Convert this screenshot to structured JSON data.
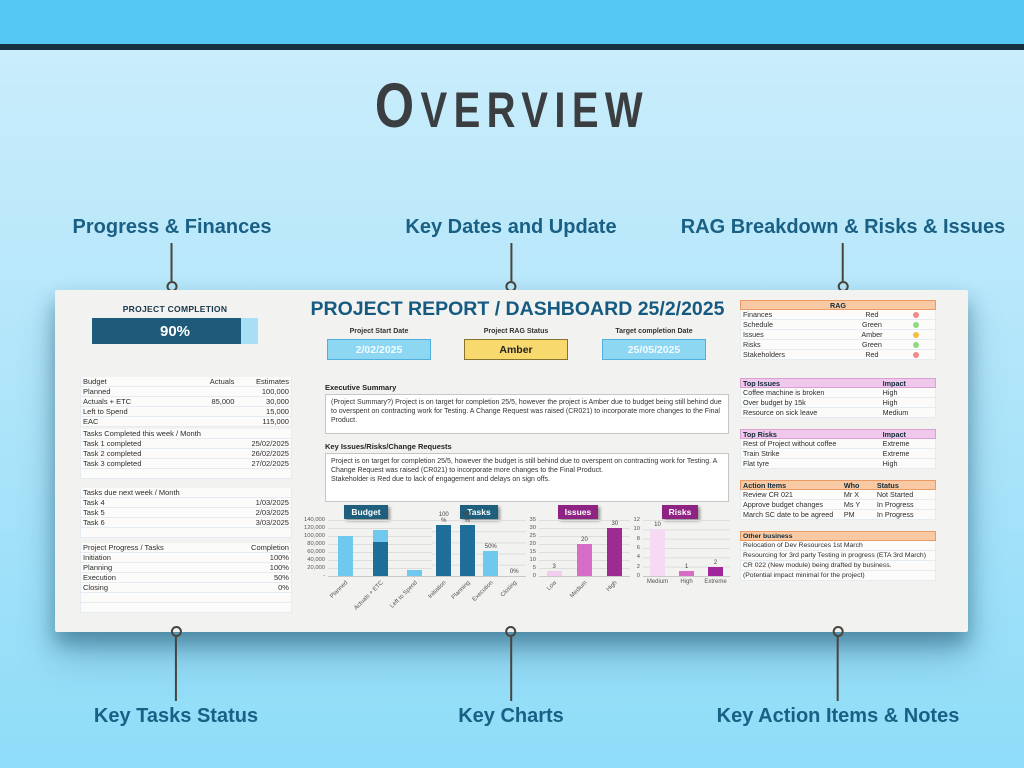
{
  "page": {
    "title": "Overview"
  },
  "callouts": {
    "top": [
      {
        "label": "Progress & Finances"
      },
      {
        "label": "Key Dates and Update"
      },
      {
        "label": "RAG Breakdown & Risks & Issues"
      }
    ],
    "bottom": [
      {
        "label": "Key Tasks Status"
      },
      {
        "label": "Key Charts"
      },
      {
        "label": "Key Action Items & Notes"
      }
    ]
  },
  "dashboard": {
    "title": "PROJECT REPORT / DASHBOARD 25/2/2025",
    "completion": {
      "label": "PROJECT COMPLETION",
      "value": "90%",
      "percent": 90,
      "fill_color": "#1e5b7a",
      "track_color": "#a9dff4"
    },
    "budget_table": {
      "headers": [
        "Budget",
        "Actuals",
        "Estimates"
      ],
      "rows": [
        [
          "Planned",
          "",
          "100,000"
        ],
        [
          "Actuals + ETC",
          "85,000",
          "30,000"
        ],
        [
          "Left to Spend",
          "",
          "15,000"
        ],
        [
          "EAC",
          "",
          "115,000"
        ]
      ]
    },
    "tasks_completed": {
      "header": "Tasks Completed this week / Month",
      "rows": [
        [
          "Task 1 completed",
          "25/02/2025"
        ],
        [
          "Task 2 completed",
          "26/02/2025"
        ],
        [
          "Task 3 completed",
          "27/02/2025"
        ]
      ]
    },
    "tasks_due": {
      "header": "Tasks due next week / Month",
      "rows": [
        [
          "Task 4",
          "1/03/2025"
        ],
        [
          "Task 5",
          "2/03/2025"
        ],
        [
          "Task 6",
          "3/03/2025"
        ]
      ]
    },
    "progress_table": {
      "headers": [
        "Project Progress / Tasks",
        "Completion"
      ],
      "rows": [
        [
          "Initiation",
          "100%"
        ],
        [
          "Planning",
          "100%"
        ],
        [
          "Execution",
          "50%"
        ],
        [
          "Closing",
          "0%"
        ]
      ]
    },
    "dates": [
      {
        "label": "Project Start Date",
        "value": "2/02/2025",
        "style": "blue"
      },
      {
        "label": "Project RAG Status",
        "value": "Amber",
        "style": "amber"
      },
      {
        "label": "Target completion Date",
        "value": "25/05/2025",
        "style": "blue"
      }
    ],
    "exec_summary": {
      "label": "Executive Summary",
      "text": "(Project Summary?) Project is on target for completion 25/5, however the project is Amber due to budget being still behind due to overspent on contracting work for Testing. A Change Request was raised (CR021) to incorporate more changes to the Final Product."
    },
    "key_issues": {
      "label": "Key Issues/Risks/Change Requests",
      "text": "Project is on target for completion 25/5, however the budget is still behind due to overspent on contracting work for Testing. A Change Request was raised (CR021) to incorporate more changes to the Final Product.\nStakeholder is Red due to lack of engagement and delays on sign offs."
    },
    "rag_table": {
      "header": "RAG",
      "rows": [
        {
          "area": "Finances",
          "status": "Red",
          "color": "#f2898c"
        },
        {
          "area": "Schedule",
          "status": "Green",
          "color": "#8fd97f"
        },
        {
          "area": "Issues",
          "status": "Amber",
          "color": "#f3bf3e"
        },
        {
          "area": "Risks",
          "status": "Green",
          "color": "#8fd97f"
        },
        {
          "area": "Stakeholders",
          "status": "Red",
          "color": "#f2898c"
        }
      ]
    },
    "top_issues": {
      "headers": [
        "Top Issues",
        "Impact"
      ],
      "rows": [
        [
          "Coffee machine is broken",
          "High"
        ],
        [
          "Over budget by 15k",
          "High"
        ],
        [
          "Resource on sick leave",
          "Medium"
        ]
      ]
    },
    "top_risks": {
      "headers": [
        "Top Risks",
        "Impact"
      ],
      "rows": [
        [
          "Rest of Project without coffee",
          "Extreme"
        ],
        [
          "Train Strike",
          "Extreme"
        ],
        [
          "Flat tyre",
          "High"
        ]
      ]
    },
    "action_items": {
      "headers": [
        "Action Items",
        "Who",
        "Status"
      ],
      "rows": [
        [
          "Review CR 021",
          "Mr X",
          "Not Started"
        ],
        [
          "Approve budget changes",
          "Ms Y",
          "In Progress"
        ],
        [
          "March SC date to be agreed",
          "PM",
          "In Progress"
        ]
      ]
    },
    "other_business": {
      "header": "Other business",
      "lines": [
        "Relocation of Dev Resources 1st March",
        "Resourcing for 3rd party Testing in progress (ETA 3rd March)",
        "CR 022 (New module) being drafted by business.",
        "(Potential impact minimal for the project)"
      ]
    }
  },
  "chart_data": [
    {
      "type": "bar",
      "title": "Budget",
      "badge_color": "#1d5f7d",
      "categories": [
        "Planned",
        "Actuals + ETC",
        "Left to Spend"
      ],
      "stacked": true,
      "series": [
        {
          "name": "Actuals",
          "values": [
            0,
            85000,
            0
          ],
          "color": "#1e6e99"
        },
        {
          "name": "Estimates",
          "values": [
            100000,
            30000,
            15000
          ],
          "color": "#6fc9ee"
        }
      ],
      "ylim": [
        0,
        140000
      ],
      "yticks": [
        "140,000",
        "120,000",
        "100,000",
        "80,000",
        "60,000",
        "40,000",
        "20,000",
        "-"
      ],
      "grid_rows": 7,
      "rotate_xlabels": true
    },
    {
      "type": "bar",
      "title": "Tasks",
      "badge_color": "#1d5f7d",
      "categories": [
        "Initiation",
        "Planning",
        "Execution",
        "Closing"
      ],
      "values": [
        100,
        100,
        50,
        0
      ],
      "colors": [
        "#1e6e99",
        "#1e6e99",
        "#6fc9ee",
        "#6fc9ee"
      ],
      "data_labels": [
        "100\n%",
        "100\n%",
        "50%",
        "0%"
      ],
      "ylim": [
        0,
        110
      ],
      "grid_rows": 5,
      "rotate_xlabels": true
    },
    {
      "type": "bar",
      "title": "Issues",
      "badge_color": "#8e2383",
      "categories": [
        "Low",
        "Medium",
        "High"
      ],
      "values": [
        3,
        20,
        30
      ],
      "colors": [
        "#f3cdee",
        "#d66cc6",
        "#9c2c92"
      ],
      "data_labels": [
        "3",
        "20",
        "30"
      ],
      "ylim": [
        0,
        35
      ],
      "yticks": [
        "35",
        "30",
        "25",
        "20",
        "15",
        "10",
        "5",
        "0"
      ],
      "grid_rows": 7,
      "rotate_xlabels": true
    },
    {
      "type": "bar",
      "title": "Risks",
      "badge_color": "#8e2383",
      "categories": [
        "Medium",
        "High",
        "Extreme"
      ],
      "values": [
        10,
        1,
        2
      ],
      "colors": [
        "#f6daf3",
        "#d66cc6",
        "#a2269b"
      ],
      "data_labels": [
        "10",
        "1",
        "2"
      ],
      "ylim": [
        0,
        12
      ],
      "yticks": [
        "12",
        "10",
        "8",
        "6",
        "4",
        "2",
        "0"
      ],
      "grid_rows": 6,
      "rotate_xlabels": false
    }
  ]
}
